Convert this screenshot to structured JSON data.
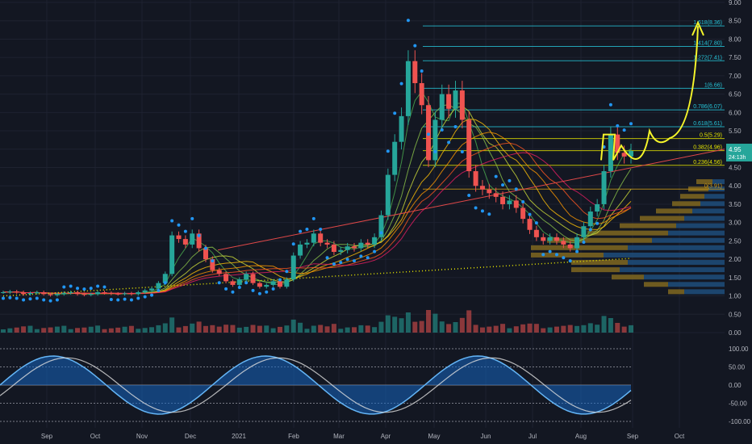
{
  "colors": {
    "background": "#131722",
    "grid": "#1e2230",
    "up": "#26a69a",
    "down": "#ef5350",
    "psar": "#2196f3",
    "ma_dotted": "#e6e600",
    "fib_line": "#26c6da",
    "fib_text": "#e6e600",
    "projection": "#f5f52a",
    "volume_profile_up": "#1e4d7b",
    "volume_profile_down": "#7a6320",
    "price_tag": "#26a69a"
  },
  "chart_data": [
    {
      "type": "candlestick",
      "y_axis": {
        "ticks": [
          "9.00",
          "8.50",
          "8.00",
          "7.50",
          "7.00",
          "6.50",
          "6.00",
          "5.50",
          "5.00",
          "4.50",
          "4.00",
          "3.50",
          "3.00",
          "2.50",
          "2.00",
          "1.50",
          "1.00",
          "0.50",
          "0.00"
        ],
        "ylim": [
          0,
          9
        ]
      },
      "x_axis": {
        "ticks": [
          "Sep",
          "Oct",
          "Nov",
          "Dec",
          "2021",
          "Feb",
          "Mar",
          "Apr",
          "May",
          "Jun",
          "Jul",
          "Aug",
          "Sep",
          "Oct"
        ]
      },
      "last_price": "4.95",
      "last_price_sub": "24:13h",
      "fib_levels": [
        {
          "label": "1.618(8.36)",
          "value": 8.36
        },
        {
          "label": "1.414(7.80)",
          "value": 7.8
        },
        {
          "label": "1.272(7.41)",
          "value": 7.41
        },
        {
          "label": "1(6.66)",
          "value": 6.66
        },
        {
          "label": "0.786(6.07)",
          "value": 6.07
        },
        {
          "label": "0.618(5.61)",
          "value": 5.61
        },
        {
          "label": "0.5(5.29)",
          "value": 5.29
        },
        {
          "label": "0.382(4.96)",
          "value": 4.96
        },
        {
          "label": "0.236(4.56)",
          "value": 4.56
        },
        {
          "label": "0(3.91)",
          "value": 3.91
        }
      ],
      "close_path": [
        1.1,
        1.12,
        1.1,
        1.05,
        1.08,
        1.1,
        1.05,
        1.02,
        1.05,
        1.08,
        1.1,
        1.05,
        1.03,
        1.05,
        1.1,
        1.08,
        1.06,
        1.05,
        1.07,
        1.05,
        1.1,
        1.15,
        1.2,
        1.35,
        1.6,
        2.65,
        2.55,
        2.4,
        2.7,
        2.3,
        2.0,
        1.7,
        1.6,
        1.4,
        1.3,
        1.45,
        1.6,
        1.35,
        1.25,
        1.3,
        1.4,
        1.25,
        1.45,
        2.1,
        2.4,
        2.45,
        2.7,
        2.45,
        2.4,
        2.2,
        2.25,
        2.35,
        2.3,
        2.45,
        2.4,
        2.6,
        3.2,
        4.3,
        5.2,
        5.9,
        7.4,
        6.8,
        6.2,
        4.7,
        5.8,
        6.5,
        6.1,
        6.6,
        5.8,
        4.4,
        4.0,
        3.9,
        3.8,
        3.7,
        3.5,
        3.6,
        3.4,
        3.1,
        2.8,
        2.6,
        2.5,
        2.6,
        2.5,
        2.4,
        2.3,
        2.6,
        2.9,
        3.3,
        3.5,
        4.4,
        5.4,
        4.9,
        4.8,
        4.95
      ]
    },
    {
      "type": "oscillator",
      "y_axis": {
        "ticks": [
          "100.00",
          "50.00",
          "0.00",
          "-50.00",
          "-100.00"
        ],
        "ylim": [
          -100,
          100
        ]
      }
    }
  ]
}
